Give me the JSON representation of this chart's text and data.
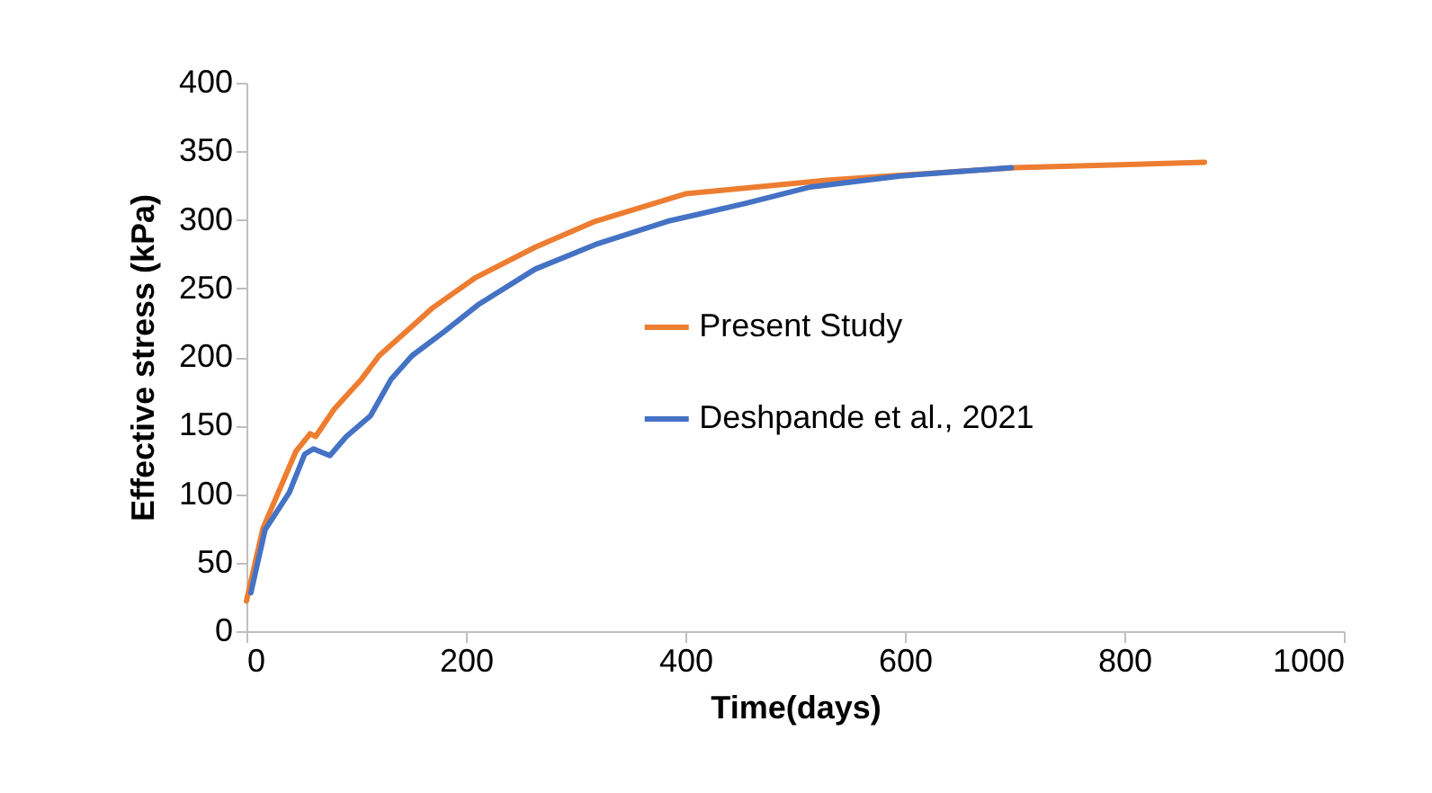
{
  "chart_data": {
    "type": "line",
    "xlabel": "Time(days)",
    "ylabel": "Effective stress (kPa)",
    "xlim": [
      0,
      1000
    ],
    "xticks": [
      0,
      200,
      400,
      600,
      800,
      1000
    ],
    "ylim": [
      0,
      400
    ],
    "yticks": [
      0,
      50,
      100,
      150,
      200,
      250,
      300,
      350,
      400
    ],
    "grid": false,
    "legend": "right",
    "line_style": "solid",
    "marker": "none",
    "series": [
      {
        "name": "Present Study",
        "color": "#ed7d31",
        "x": [
          0,
          15,
          45,
          58,
          63,
          80,
          105,
          121,
          149,
          170,
          209,
          263,
          318,
          400,
          531,
          700,
          873
        ],
        "values": [
          22,
          75,
          131,
          144,
          142,
          162,
          184,
          201,
          221,
          236,
          258,
          280,
          299,
          319,
          329,
          338,
          342
        ]
      },
      {
        "name": "Deshpande et al., 2021",
        "color": "#4472c4",
        "x": [
          4,
          17,
          39,
          53,
          61,
          76,
          91,
          113,
          132,
          151,
          181,
          211,
          263,
          318,
          384,
          455,
          514,
          596,
          697
        ],
        "values": [
          28,
          74,
          101,
          129,
          133,
          128,
          142,
          157,
          184,
          201,
          219,
          238,
          264,
          282,
          299,
          312,
          324,
          332,
          338
        ]
      }
    ]
  }
}
